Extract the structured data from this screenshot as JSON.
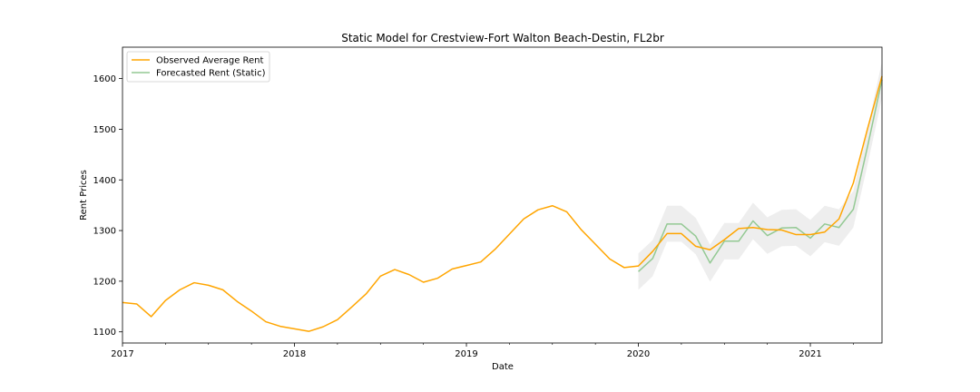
{
  "chart_data": {
    "type": "line",
    "title": "Static Model for Crestview-Fort Walton Beach-Destin, FL2br",
    "xlabel": "Date",
    "ylabel": "Rent Prices",
    "xlim": [
      "2017-01",
      "2021-06"
    ],
    "ylim": [
      1078,
      1662
    ],
    "x_ticks": [
      "2017",
      "2018",
      "2019",
      "2020",
      "2021"
    ],
    "y_ticks": [
      1100,
      1200,
      1300,
      1400,
      1500,
      1600
    ],
    "legend": {
      "position": "top-left"
    },
    "grid": false,
    "series": [
      {
        "name": "Observed Average Rent",
        "color": "#ffa500",
        "points": [
          [
            "2017-01",
            1158
          ],
          [
            "2017-02",
            1155
          ],
          [
            "2017-03",
            1130
          ],
          [
            "2017-04",
            1162
          ],
          [
            "2017-05",
            1183
          ],
          [
            "2017-06",
            1197
          ],
          [
            "2017-07",
            1192
          ],
          [
            "2017-08",
            1183
          ],
          [
            "2017-09",
            1160
          ],
          [
            "2017-10",
            1141
          ],
          [
            "2017-11",
            1120
          ],
          [
            "2017-12",
            1111
          ],
          [
            "2018-01",
            1106
          ],
          [
            "2018-02",
            1101
          ],
          [
            "2018-03",
            1110
          ],
          [
            "2018-04",
            1124
          ],
          [
            "2018-05",
            1149
          ],
          [
            "2018-06",
            1175
          ],
          [
            "2018-07",
            1210
          ],
          [
            "2018-08",
            1223
          ],
          [
            "2018-09",
            1213
          ],
          [
            "2018-10",
            1198
          ],
          [
            "2018-11",
            1206
          ],
          [
            "2018-12",
            1224
          ],
          [
            "2019-01",
            1231
          ],
          [
            "2019-02",
            1238
          ],
          [
            "2019-03",
            1263
          ],
          [
            "2019-04",
            1293
          ],
          [
            "2019-05",
            1323
          ],
          [
            "2019-06",
            1341
          ],
          [
            "2019-07",
            1349
          ],
          [
            "2019-08",
            1337
          ],
          [
            "2019-09",
            1302
          ],
          [
            "2019-10",
            1273
          ],
          [
            "2019-11",
            1244
          ],
          [
            "2019-12",
            1227
          ],
          [
            "2020-01",
            1230
          ],
          [
            "2020-02",
            1259
          ],
          [
            "2020-03",
            1294
          ],
          [
            "2020-04",
            1294
          ],
          [
            "2020-05",
            1269
          ],
          [
            "2020-06",
            1262
          ],
          [
            "2020-07",
            1282
          ],
          [
            "2020-08",
            1304
          ],
          [
            "2020-09",
            1306
          ],
          [
            "2020-10",
            1302
          ],
          [
            "2020-11",
            1301
          ],
          [
            "2020-12",
            1292
          ],
          [
            "2021-01",
            1292
          ],
          [
            "2021-02",
            1297
          ],
          [
            "2021-03",
            1323
          ],
          [
            "2021-04",
            1394
          ],
          [
            "2021-05",
            1502
          ],
          [
            "2021-06",
            1605
          ]
        ]
      },
      {
        "name": "Forecasted Rent (Static)",
        "color": "#94c994",
        "points": [
          [
            "2020-01",
            1219
          ],
          [
            "2020-02",
            1245
          ],
          [
            "2020-03",
            1313
          ],
          [
            "2020-04",
            1313
          ],
          [
            "2020-05",
            1289
          ],
          [
            "2020-06",
            1236
          ],
          [
            "2020-07",
            1279
          ],
          [
            "2020-08",
            1279
          ],
          [
            "2020-09",
            1319
          ],
          [
            "2020-10",
            1290
          ],
          [
            "2020-11",
            1305
          ],
          [
            "2020-12",
            1306
          ],
          [
            "2021-01",
            1285
          ],
          [
            "2021-02",
            1313
          ],
          [
            "2021-03",
            1306
          ],
          [
            "2021-04",
            1342
          ],
          [
            "2021-05",
            1467
          ],
          [
            "2021-06",
            1598
          ]
        ]
      }
    ],
    "confidence_interval": {
      "color": "#ebebeb",
      "x": [
        "2020-01",
        "2020-02",
        "2020-03",
        "2020-04",
        "2020-05",
        "2020-06",
        "2020-07",
        "2020-08",
        "2020-09",
        "2020-10",
        "2020-11",
        "2020-12",
        "2021-01",
        "2021-02",
        "2021-03",
        "2021-04",
        "2021-05",
        "2021-06"
      ],
      "lower": [
        1183,
        1210,
        1278,
        1278,
        1253,
        1199,
        1243,
        1243,
        1283,
        1254,
        1269,
        1270,
        1249,
        1277,
        1270,
        1306,
        1431,
        1562
      ],
      "upper": [
        1255,
        1281,
        1349,
        1349,
        1325,
        1272,
        1315,
        1315,
        1355,
        1326,
        1341,
        1342,
        1321,
        1349,
        1342,
        1378,
        1503,
        1634
      ]
    }
  }
}
